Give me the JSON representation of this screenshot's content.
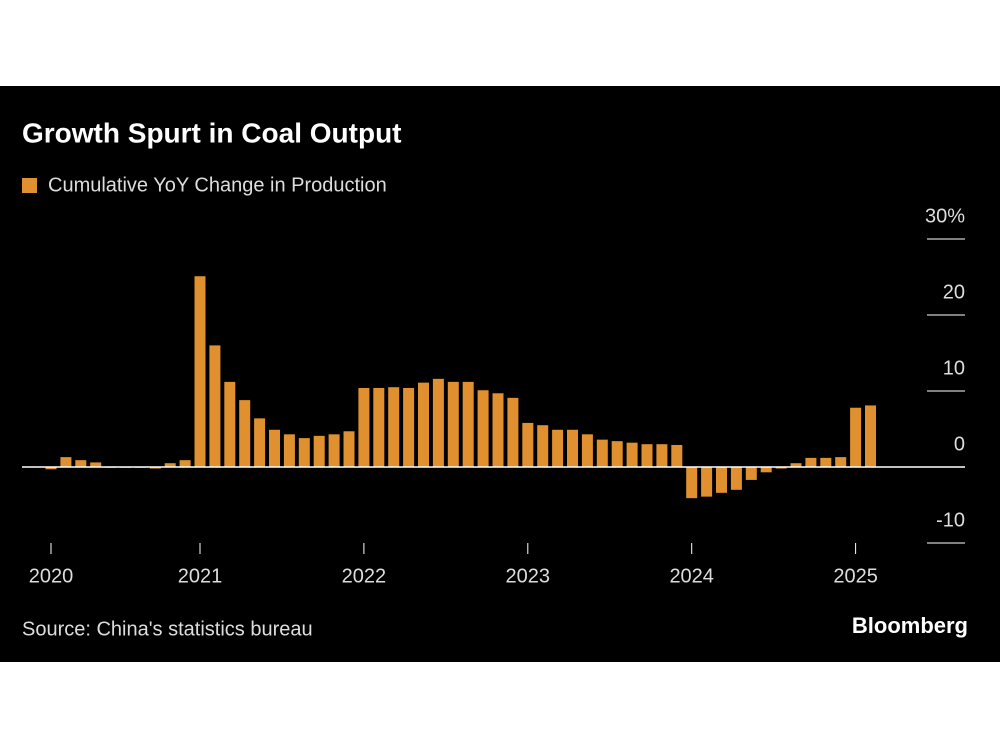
{
  "chart_data": {
    "type": "bar",
    "title": "Growth Spurt in Coal Output",
    "legend": "Cumulative YoY Change in Production",
    "source": "Source: China's statistics bureau",
    "brand": "Bloomberg",
    "color": "#e0902f",
    "categories": [
      "2020",
      null,
      null,
      null,
      null,
      null,
      null,
      null,
      null,
      null,
      "2021",
      null,
      null,
      null,
      null,
      null,
      null,
      null,
      null,
      null,
      null,
      "2022",
      null,
      null,
      null,
      null,
      null,
      null,
      null,
      null,
      null,
      null,
      "2023",
      null,
      null,
      null,
      null,
      null,
      null,
      null,
      null,
      null,
      null,
      "2024",
      null,
      null,
      null,
      null,
      null,
      null,
      null,
      null,
      null,
      null,
      "2025",
      null
    ],
    "values": [
      -0.3,
      1.3,
      0.9,
      0.6,
      -0.1,
      -0.1,
      -0.1,
      -0.2,
      0.5,
      0.9,
      25.1,
      16.0,
      11.2,
      8.8,
      6.4,
      4.9,
      4.3,
      3.8,
      4.1,
      4.3,
      4.7,
      10.4,
      10.4,
      10.5,
      10.4,
      11.1,
      11.6,
      11.2,
      11.2,
      10.1,
      9.7,
      9.1,
      5.8,
      5.5,
      4.9,
      4.9,
      4.3,
      3.6,
      3.4,
      3.2,
      3.0,
      3.0,
      2.9,
      -4.1,
      -3.9,
      -3.4,
      -3.0,
      -1.7,
      -0.7,
      -0.2,
      0.5,
      1.2,
      1.2,
      1.3,
      7.8,
      8.1
    ],
    "ylim": [
      -10,
      30
    ],
    "yticks": [
      -10,
      0,
      10,
      20,
      {
        "value": 30,
        "label": "30%"
      }
    ]
  }
}
